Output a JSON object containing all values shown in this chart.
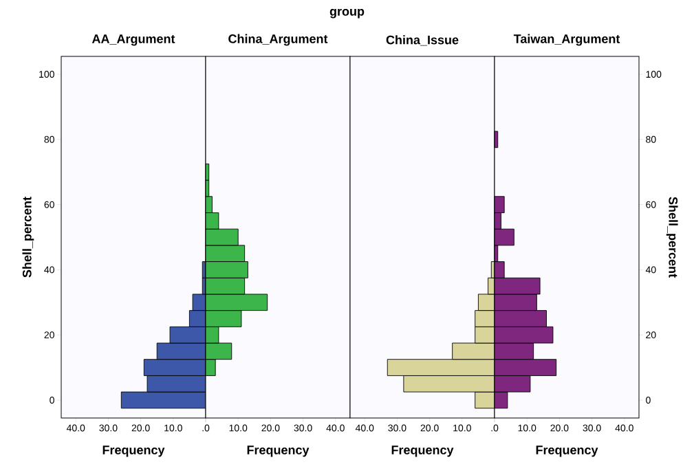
{
  "chart_data": [
    {
      "type": "histogram",
      "orientation": "horizontal",
      "title": "AA_Argument",
      "xlabel": "Frequency",
      "ylabel": "Shell_percent",
      "annotations": [
        "group"
      ],
      "color": "#3d58a8",
      "bins": [
        -2.5,
        2.5,
        7.5,
        12.5,
        17.5,
        22.5,
        27.5,
        32.5,
        37.5,
        42.5,
        47.5,
        52.5,
        57.5,
        62.5,
        67.5,
        72.5,
        77.5,
        82.5
      ],
      "values": [
        26,
        18,
        19,
        15,
        11,
        5,
        4,
        1,
        1,
        0,
        0,
        0,
        0,
        0,
        0,
        0,
        0
      ],
      "xlim": [
        44.5,
        0
      ],
      "xticks": [
        {
          "value": 40,
          "label": "40.0"
        },
        {
          "value": 30,
          "label": "30.0"
        },
        {
          "value": 20,
          "label": "20.0"
        },
        {
          "value": 10,
          "label": "10.0"
        },
        {
          "value": 0,
          "label": null
        }
      ],
      "ylim": [
        -5.5,
        105.5
      ],
      "yticks": [
        0,
        20,
        40,
        60,
        80,
        100
      ]
    },
    {
      "type": "histogram",
      "orientation": "horizontal",
      "title": "China_Argument",
      "xlabel": "Frequency",
      "color": "#3cb54a",
      "bins": [
        -2.5,
        2.5,
        7.5,
        12.5,
        17.5,
        22.5,
        27.5,
        32.5,
        37.5,
        42.5,
        47.5,
        52.5,
        57.5,
        62.5,
        67.5,
        72.5,
        77.5,
        82.5
      ],
      "values": [
        0,
        0,
        3,
        8,
        4,
        11,
        19,
        12,
        13,
        12,
        10,
        4,
        2,
        1,
        1,
        0,
        0
      ],
      "xlim": [
        0,
        44.5
      ],
      "xticks": [
        {
          "value": 0,
          "label": ".0"
        },
        {
          "value": 10,
          "label": "10.0"
        },
        {
          "value": 20,
          "label": "20.0"
        },
        {
          "value": 30,
          "label": "30.0"
        },
        {
          "value": 40,
          "label": "40.0"
        }
      ],
      "ylim": [
        -5.5,
        105.5
      ],
      "tick_labels": "x"
    },
    {
      "type": "histogram",
      "orientation": "horizontal",
      "title": "China_Issue",
      "xlabel": "Frequency",
      "color": "#d8d49a",
      "bins": [
        -2.5,
        2.5,
        7.5,
        12.5,
        17.5,
        22.5,
        27.5,
        32.5,
        37.5,
        42.5,
        47.5,
        52.5,
        57.5,
        62.5,
        67.5,
        72.5,
        77.5,
        82.5
      ],
      "values": [
        6,
        28,
        33,
        13,
        6,
        6,
        5,
        2,
        1,
        0,
        0,
        0,
        0,
        0,
        0,
        0,
        0
      ],
      "xlim": [
        44.5,
        0
      ],
      "xticks": [
        {
          "value": 40,
          "label": "40.0"
        },
        {
          "value": 30,
          "label": "30.0"
        },
        {
          "value": 20,
          "label": "20.0"
        },
        {
          "value": 10,
          "label": "10.0"
        },
        {
          "value": 0,
          "label": null
        }
      ],
      "ylim": [
        -5.5,
        105.5
      ],
      "tick_labels": "x"
    },
    {
      "type": "histogram",
      "orientation": "horizontal",
      "title": "Taiwan_Argument",
      "xlabel": "Frequency",
      "ylabel": "Shell_percent",
      "color": "#7f277f",
      "bins": [
        -2.5,
        2.5,
        7.5,
        12.5,
        17.5,
        22.5,
        27.5,
        32.5,
        37.5,
        42.5,
        47.5,
        52.5,
        57.5,
        62.5,
        67.5,
        72.5,
        77.5,
        82.5
      ],
      "values": [
        4,
        11,
        19,
        12,
        18,
        16,
        13,
        14,
        3,
        1,
        6,
        2,
        3,
        0,
        0,
        0,
        1
      ],
      "xlim": [
        0,
        44.5
      ],
      "xticks": [
        {
          "value": 0,
          "label": ".0"
        },
        {
          "value": 10,
          "label": "10.0"
        },
        {
          "value": 20,
          "label": "20.0"
        },
        {
          "value": 30,
          "label": "30.0"
        },
        {
          "value": 40,
          "label": "40.0"
        }
      ],
      "ylim": [
        -5.5,
        105.5
      ],
      "yticks": [
        0,
        20,
        40,
        60,
        80,
        100
      ]
    }
  ]
}
